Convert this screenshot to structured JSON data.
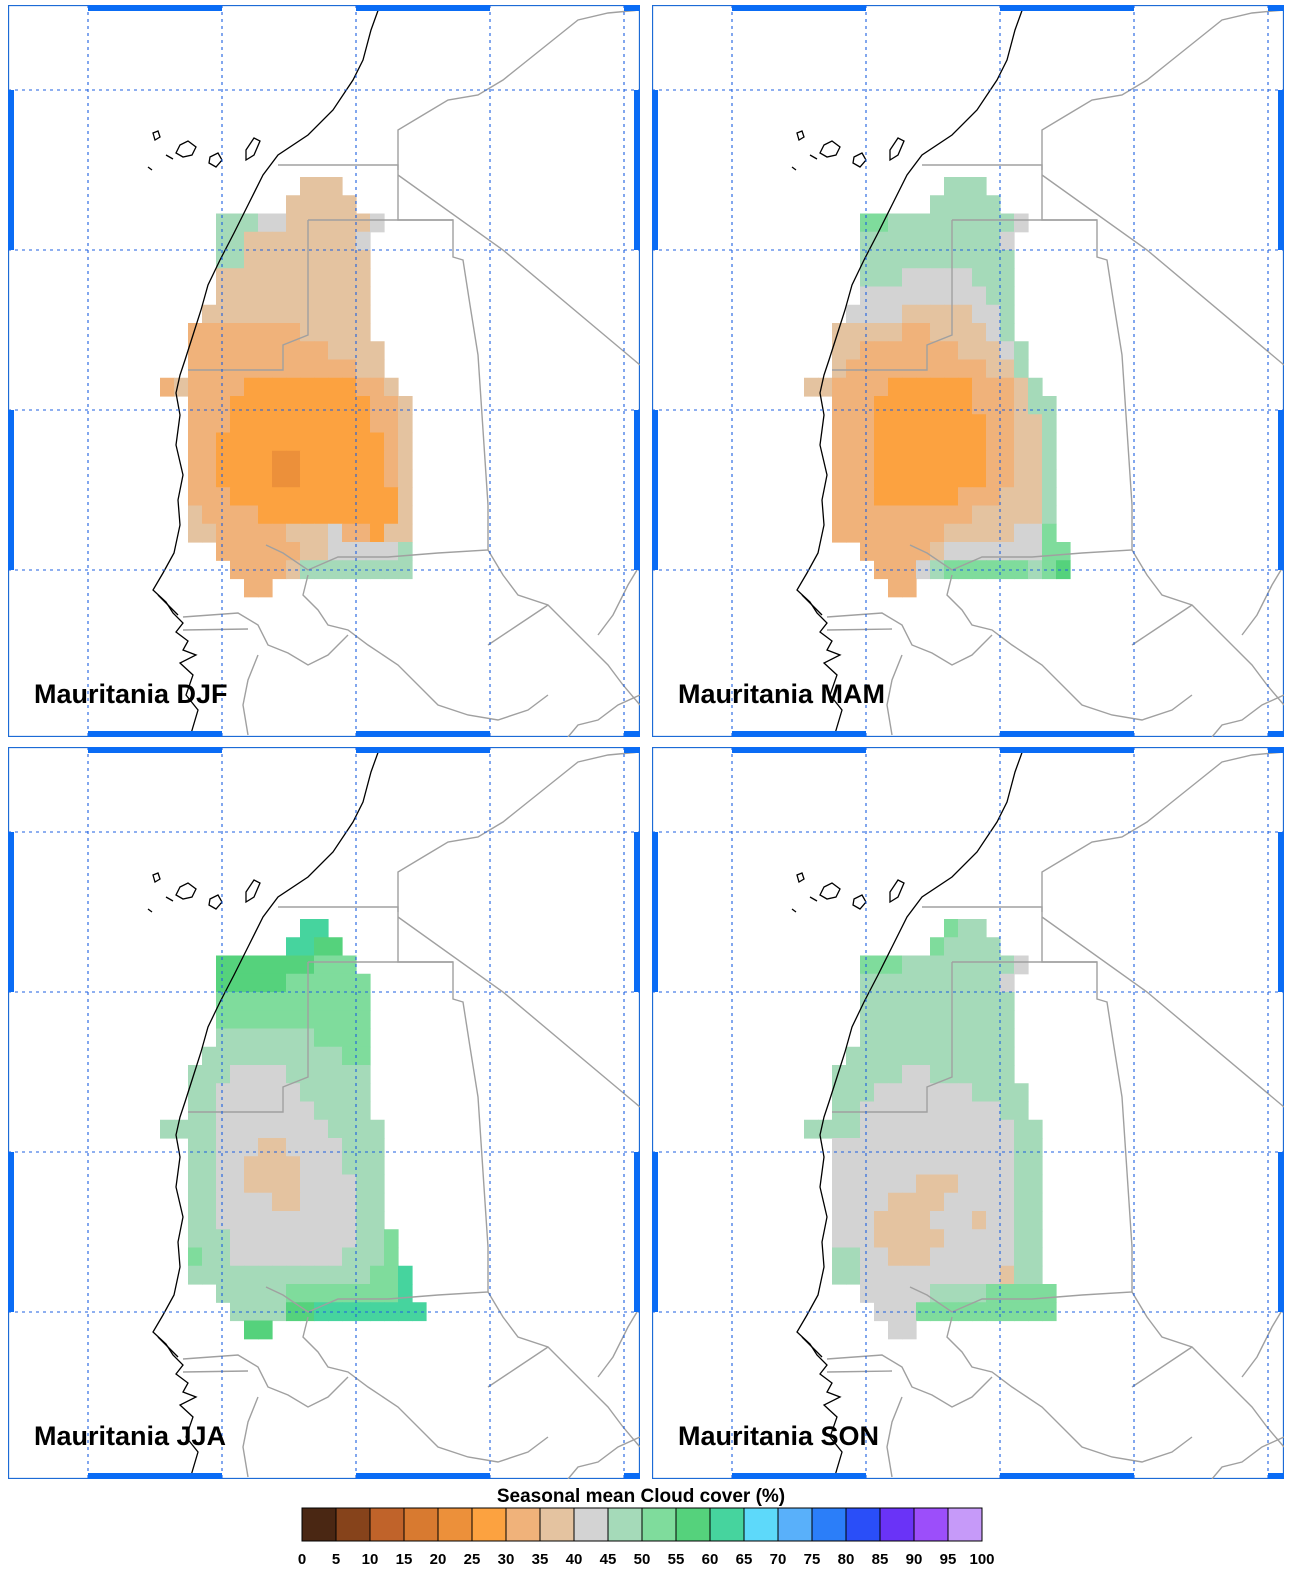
{
  "panels": [
    {
      "label": "Mauritania DJF",
      "field": [
        "..........HHH.......",
        ".........HHHHH......",
        "....JJJIIHHHHHHI....",
        "....JJHHHHHHHHI.....",
        "....JJHHHHHHHHH.....",
        "....HHHHHHHHHHH.....",
        "....HHHHHHHHHHH.....",
        "...HHHHHHHHHHHH.....",
        "..GGGGGGGGHHHHH.....",
        "..GGGGGGGGGGHHHH....",
        "..GGGGGGGGGGGGHH....",
        "GHGGGGFFFFFFFFGGH...",
        "..GGGFFFFFFFFFFGGH..",
        "..GGGFFFFFFFFFFGGH..",
        "..GGFFFFFFFFFFFFGH..",
        "..GGFFFFEEFFFFFFGH..",
        "..GGFFFFEEFFFFFFGH..",
        "..GGGFFFFFFFFFFFFH..",
        "..HGGGGFFFFFFFFFFH..",
        "..HHGGGGGHHHIGGFHH..",
        "....GGGGGGHHIIIIIJ..",
        ".....GGGGHJJJJJJJJ..",
        "......GG............"
      ]
    },
    {
      "label": "Mauritania MAM",
      "field": [
        "..........JJJ.......",
        ".........JJJJJ......",
        "....KKJJJJJJJJJI....",
        "....JJJJJJJJJJI.....",
        "....JJJJJJJJJJJ.....",
        "....JJJIIIIIJJJ.....",
        "....IIIIIIIIIJJ.....",
        "...IIIIHHHHHIIJ.....",
        "..HHHHHGGHHHHIJ.....",
        "..HHGGGGGGGHHHIJ....",
        "..HGGGGGGGGGGHHJ....",
        "HHGGGGFFFFFFGGGHJ...",
        "..GGGFFFFFFFGGGHJJ..",
        "..GGGFFFFFFFFGGHHJ..",
        "..GGGFFFFFFFFGGHHJ..",
        "..GGGFFFFFFFFGGHHJ..",
        "..GGGFFFFFFFFGGHHJ..",
        "..GGGFFFFFFGGGHHHJ..",
        "..GGGGGGGGGGHHHHHJ..",
        "..GGGGGGGGHHHHHIIK..",
        "....GGGGGHIIIIIIIKK.",
        ".....GGGIJKKKKKKJKL.",
        "......GG............"
      ]
    },
    {
      "label": "Mauritania JJA",
      "field": [
        "..........MM........",
        ".........MMLL.......",
        "....LLLLLLLKKK......",
        "....LLLLLKKKKKK.....",
        "....KKKKKKKKKKK.....",
        "....KKKKKKKKKKK.....",
        "....JJJJJJJKKKK.....",
        "...JJJJJJJJJJKK.....",
        "..JJJIIIIJJJJJJ.....",
        "..JJIIIIIIJJJJJ.....",
        "..JJIIIIIIIJJJJ.....",
        "JJJJIIIIIIIIJJJJ....",
        "..JJIIIHHIIIIJJJ....",
        "..JJIIHHHHIIIJJJ....",
        "..JJIIHHHHIIIIJJ....",
        "..JJIIIIHHIIIIJJ....",
        "..JJIIIIIIIIIIJJ....",
        "..JJJIIIIIIIIIJJK...",
        "..KJJIIIIIIIIJJJK...",
        "..JJJJJJJJJJJJJKKM..",
        "....JJJJJKKKKKKKKM..",
        ".....JJJJLLMMMMMMMM.",
        "......LL............"
      ]
    },
    {
      "label": "Mauritania SON",
      "field": [
        "..........KJJ.......",
        ".........KJJJJ......",
        "....KKKJJJJJJJJI....",
        "....JJJJJJJJJJI.....",
        "....JJJJJJJJJJJ.....",
        "....JJJJJJJJJJJ.....",
        "....JJJJJJJJJJJ.....",
        "...JJJJJJJJJJJJ.....",
        "..JJJJJIIJJJJJJ.....",
        "..JJJIIIIIIIJJJJ....",
        "..JJIIIIIIIIIIJJ....",
        "JJJJIIIIIIIIIIIJJ...",
        "..IIIIIIIIIIIIIJJ...",
        "..IIIIIIIIIIIIIJJ...",
        "..IIIIIIHHHIIIIJJ...",
        "..IIIIHHHHIIIIIJJ...",
        "..IIIHHHHIIIHIIJJ...",
        "..IIIHHHHHIIIIIJJ...",
        "..JJIIHHHIIIIIIJJ...",
        "..JJIIIIIIIIIIHJJ...",
        "....IIIIIJJJJKKKKK..",
        ".....IIIKKKKKKKKKK..",
        "......II............"
      ]
    }
  ],
  "colorbar": {
    "title": "Seasonal mean Cloud cover (%)",
    "ticks": [
      "0",
      "5",
      "10",
      "15",
      "20",
      "25",
      "30",
      "35",
      "40",
      "45",
      "50",
      "55",
      "60",
      "65",
      "70",
      "75",
      "80",
      "85",
      "90",
      "95",
      "100"
    ],
    "colors": [
      "#4a2713",
      "#86431b",
      "#c0632a",
      "#d87a30",
      "#ec903a",
      "#fca240",
      "#f0b27a",
      "#e4c3a0",
      "#d3d3d3",
      "#a5dab9",
      "#7fdc9c",
      "#55d27c",
      "#46d49e",
      "#5dd9fa",
      "#59b0fa",
      "#2b7ef9",
      "#2a4ef8",
      "#6a33f7",
      "#9c4efa",
      "#c69af9"
    ]
  }
}
